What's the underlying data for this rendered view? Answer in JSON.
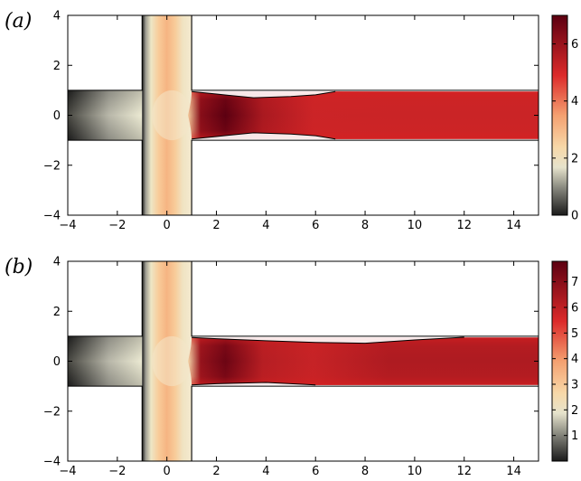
{
  "chart_data": [
    {
      "type": "heatmap",
      "panel_label": "(a)",
      "xlim": [
        -4,
        15
      ],
      "ylim": [
        -4,
        4
      ],
      "xticks": [
        -4,
        -2,
        0,
        2,
        4,
        6,
        8,
        10,
        12,
        14
      ],
      "yticks": [
        -4,
        -2,
        0,
        2,
        4
      ],
      "colorbar": {
        "range": [
          0,
          7
        ],
        "ticks": [
          0,
          2,
          4,
          6
        ]
      },
      "geometry": {
        "channel_halfwidth": 1,
        "inlet_x_range": [
          -1,
          1
        ],
        "stagnation_point": [
          1,
          0
        ]
      },
      "stream_field": {
        "peak_value": 7,
        "peak_x": 2.5,
        "tail_value": 5.2
      },
      "contours": {
        "upper": [
          [
            1.0,
            0.95
          ],
          [
            2.0,
            0.85
          ],
          [
            3.5,
            0.7
          ],
          [
            5.0,
            0.75
          ],
          [
            6.0,
            0.82
          ],
          [
            6.8,
            0.95
          ]
        ],
        "lower": [
          [
            1.0,
            -0.95
          ],
          [
            2.0,
            -0.85
          ],
          [
            3.5,
            -0.7
          ],
          [
            5.0,
            -0.75
          ],
          [
            6.0,
            -0.82
          ],
          [
            6.8,
            -0.95
          ]
        ]
      }
    },
    {
      "type": "heatmap",
      "panel_label": "(b)",
      "xlim": [
        -4,
        15
      ],
      "ylim": [
        -4,
        4
      ],
      "xticks": [
        -4,
        -2,
        0,
        2,
        4,
        6,
        8,
        10,
        12,
        14
      ],
      "yticks": [
        -4,
        -2,
        0,
        2,
        4
      ],
      "colorbar": {
        "range": [
          0,
          7.8
        ],
        "ticks": [
          1,
          2,
          3,
          4,
          5,
          6,
          7
        ]
      },
      "geometry": {
        "channel_halfwidth": 1,
        "inlet_x_range": [
          -1,
          1
        ],
        "stagnation_point": [
          1,
          0
        ]
      },
      "stream_field": {
        "peak_value": 7.5,
        "peak_x": 2.5,
        "tail_value": 6.3
      },
      "contours": {
        "upper": [
          [
            1.0,
            0.95
          ],
          [
            2.0,
            0.9
          ],
          [
            4.0,
            0.82
          ],
          [
            6.0,
            0.75
          ],
          [
            8.0,
            0.72
          ],
          [
            10.0,
            0.85
          ],
          [
            12.0,
            0.96
          ]
        ],
        "lower": [
          [
            1.0,
            -0.95
          ],
          [
            2.0,
            -0.9
          ],
          [
            4.0,
            -0.85
          ],
          [
            6.0,
            -0.95
          ]
        ]
      }
    }
  ]
}
